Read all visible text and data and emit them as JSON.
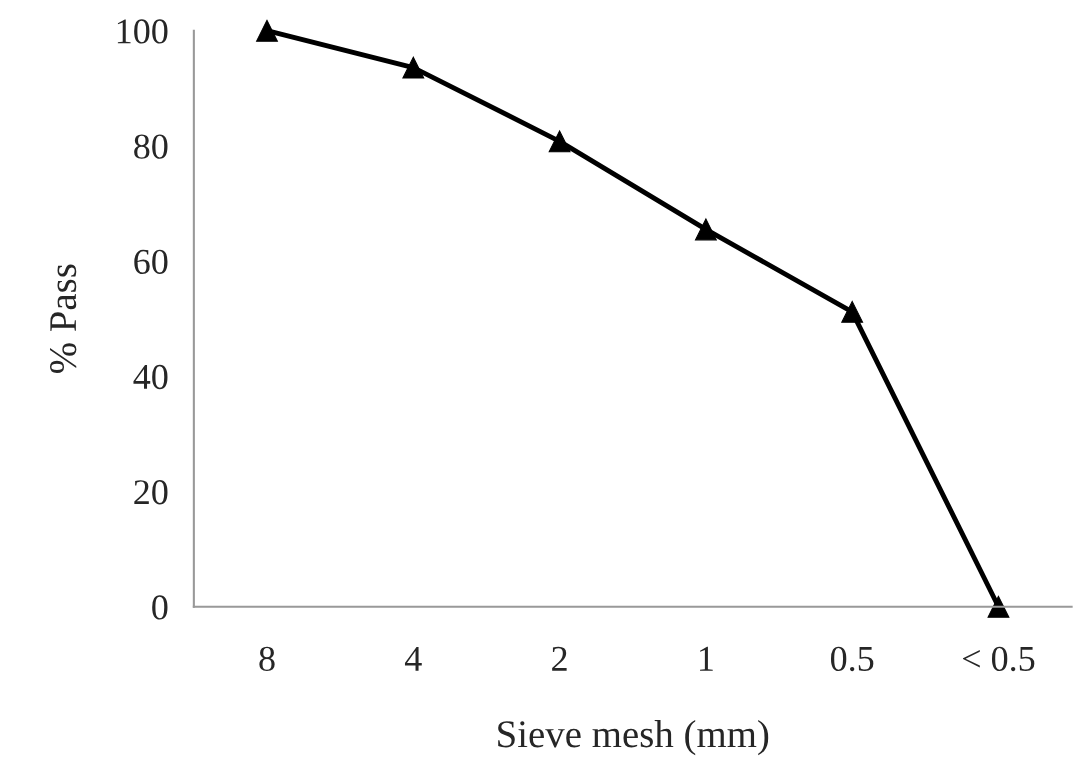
{
  "chart_data": {
    "type": "line",
    "xlabel": "Sieve mesh (mm)",
    "ylabel": "% Pass",
    "categories": [
      "8",
      "4",
      "2",
      "1",
      "0.5",
      "< 0.5"
    ],
    "series": [
      {
        "color": "#000000",
        "values": [
          100,
          93.6,
          80.8,
          65.5,
          51.2,
          0
        ]
      }
    ],
    "ylim": [
      0,
      100
    ],
    "yticks": [
      0,
      20,
      40,
      60,
      80,
      100
    ],
    "marker": "triangle",
    "line_style": "solid",
    "grid": false,
    "legend": false
  }
}
